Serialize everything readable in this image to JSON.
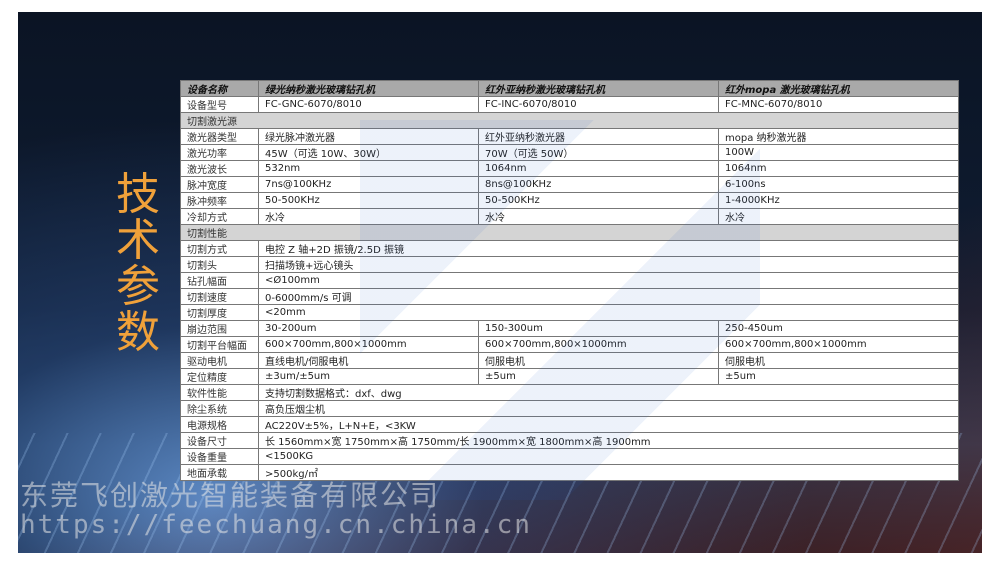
{
  "side_title": [
    "技",
    "术",
    "参",
    "数"
  ],
  "table": {
    "header": [
      "设备名称",
      "绿光纳秒激光玻璃钻孔机",
      "红外亚纳秒激光玻璃钻孔机",
      "红外mopa 激光玻璃钻孔机"
    ],
    "rows": [
      {
        "type": "row",
        "cells": [
          "设备型号",
          "FC-GNC-6070/8010",
          "FC-INC-6070/8010",
          "FC-MNC-6070/8010"
        ]
      },
      {
        "type": "section",
        "cells": [
          "切割激光源"
        ]
      },
      {
        "type": "row",
        "cells": [
          "激光器类型",
          "绿光脉冲激光器",
          "红外亚纳秒激光器",
          "mopa 纳秒激光器"
        ]
      },
      {
        "type": "row",
        "cells": [
          "激光功率",
          "45W（可选 10W、30W）",
          "70W（可选 50W）",
          "100W"
        ]
      },
      {
        "type": "row",
        "cells": [
          "激光波长",
          "532nm",
          "1064nm",
          "1064nm"
        ]
      },
      {
        "type": "row",
        "cells": [
          "脉冲宽度",
          "7ns@100KHz",
          "8ns@100KHz",
          "6-100ns"
        ]
      },
      {
        "type": "row",
        "cells": [
          "脉冲频率",
          "50-500KHz",
          "50-500KHz",
          "1-4000KHz"
        ]
      },
      {
        "type": "row",
        "cells": [
          "冷却方式",
          "水冷",
          "水冷",
          "水冷"
        ]
      },
      {
        "type": "section",
        "cells": [
          "切割性能"
        ]
      },
      {
        "type": "span",
        "cells": [
          "切割方式",
          "电控 Z 轴+2D 振镜/2.5D 振镜"
        ]
      },
      {
        "type": "span",
        "cells": [
          "切割头",
          "扫描场镜+远心镜头"
        ]
      },
      {
        "type": "span",
        "cells": [
          "钻孔幅面",
          "<Ø100mm"
        ]
      },
      {
        "type": "span",
        "cells": [
          "切割速度",
          "0-6000mm/s 可调"
        ]
      },
      {
        "type": "span",
        "cells": [
          "切割厚度",
          "<20mm"
        ]
      },
      {
        "type": "row",
        "cells": [
          "崩边范围",
          "30-200um",
          "150-300um",
          "250-450um"
        ]
      },
      {
        "type": "row",
        "cells": [
          "切割平台幅面",
          "600×700mm,800×1000mm",
          "600×700mm,800×1000mm",
          "600×700mm,800×1000mm"
        ]
      },
      {
        "type": "row",
        "cells": [
          "驱动电机",
          "直线电机/伺服电机",
          "伺服电机",
          "伺服电机"
        ]
      },
      {
        "type": "row",
        "cells": [
          "定位精度",
          "±3um/±5um",
          "±5um",
          "±5um"
        ]
      },
      {
        "type": "span",
        "cells": [
          "软件性能",
          "支持切割数据格式：dxf、dwg"
        ]
      },
      {
        "type": "span",
        "cells": [
          "除尘系统",
          "高负压烟尘机"
        ]
      },
      {
        "type": "span",
        "cells": [
          "电源规格",
          "AC220V±5%，L+N+E，<3KW"
        ]
      },
      {
        "type": "span",
        "cells": [
          "设备尺寸",
          "长 1560mm×宽 1750mm×高 1750mm/长 1900mm×宽 1800mm×高 1900mm"
        ]
      },
      {
        "type": "span",
        "cells": [
          "设备重量",
          "<1500KG"
        ]
      },
      {
        "type": "span",
        "cells": [
          "地面承载",
          ">500kg/㎡"
        ]
      }
    ]
  },
  "watermark": {
    "company": "东莞飞创激光智能装备有限公司",
    "url": "https://feechuang.cn.china.cn"
  },
  "colors": {
    "title": "#f0a13a",
    "header_bg": "#a9a9a9",
    "section_bg": "#d4d4d4"
  }
}
